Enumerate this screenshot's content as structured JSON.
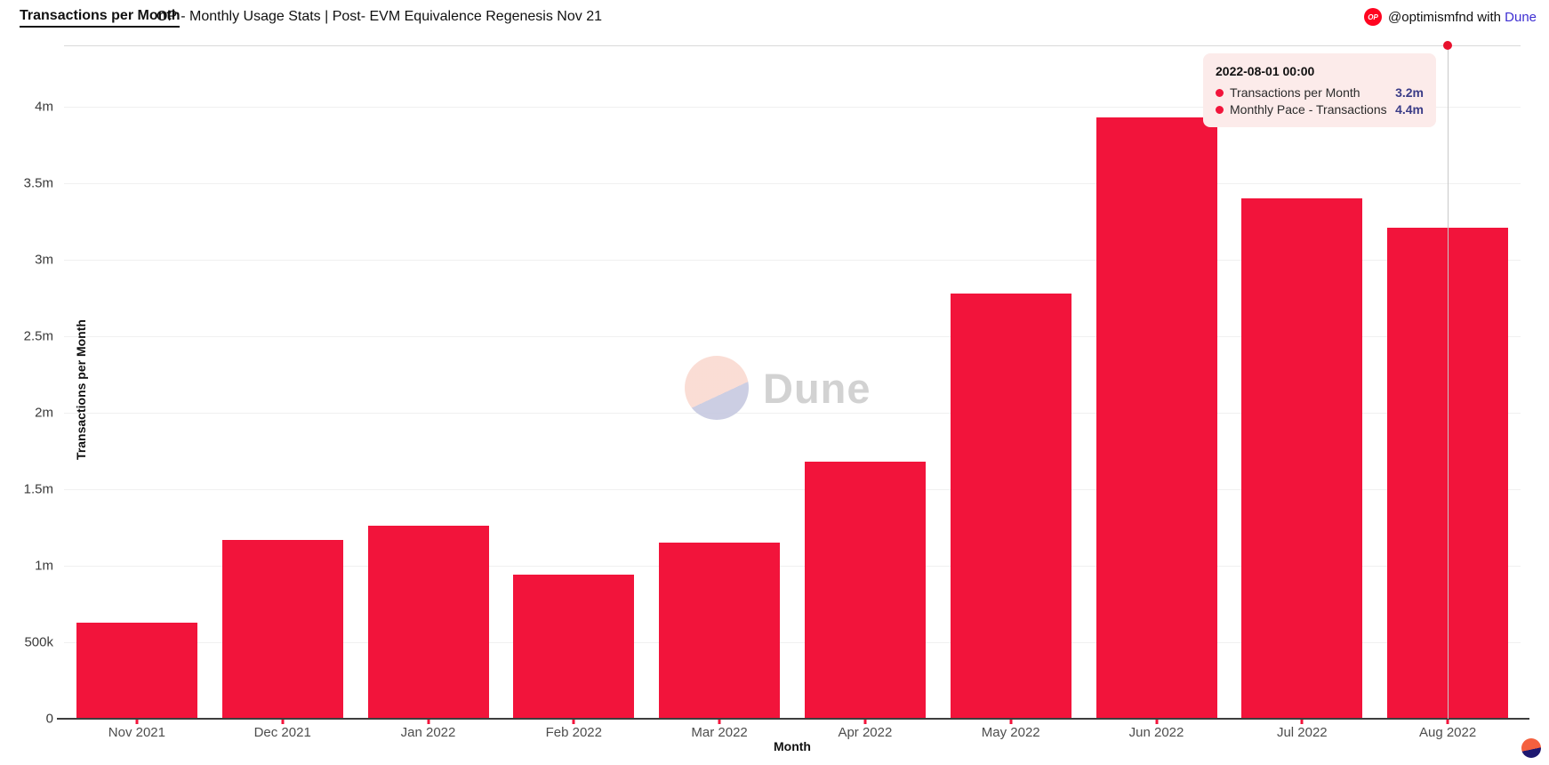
{
  "header": {
    "title": "Transactions per Month",
    "subtitle": "OP - Monthly Usage Stats | Post- EVM Equivalence Regenesis Nov 21",
    "badge_text": "OP",
    "attribution_handle": "@optimismfnd",
    "attribution_connector": "with",
    "attribution_brand": "Dune"
  },
  "chart_data": {
    "type": "bar",
    "title": "OP - Monthly Usage Stats | Post- EVM Equivalence Regenesis Nov 21",
    "xlabel": "Month",
    "ylabel": "Transactions per Month",
    "categories": [
      "Nov 2021",
      "Dec 2021",
      "Jan 2022",
      "Feb 2022",
      "Mar 2022",
      "Apr 2022",
      "May 2022",
      "Jun 2022",
      "Jul 2022",
      "Aug 2022"
    ],
    "series": [
      {
        "name": "Transactions per Month",
        "type": "bar",
        "color": "#f2143b",
        "values": [
          630000,
          1170000,
          1260000,
          940000,
          1150000,
          1680000,
          2780000,
          3930000,
          3400000,
          3210000
        ]
      },
      {
        "name": "Monthly Pace - Transactions",
        "type": "point",
        "color": "#e8112d",
        "values": [
          null,
          null,
          null,
          null,
          null,
          null,
          null,
          null,
          null,
          4400000
        ]
      }
    ],
    "ylim": [
      0,
      4400000
    ],
    "yticks": [
      {
        "value": 0,
        "label": "0"
      },
      {
        "value": 500000,
        "label": "500k"
      },
      {
        "value": 1000000,
        "label": "1m"
      },
      {
        "value": 1500000,
        "label": "1.5m"
      },
      {
        "value": 2000000,
        "label": "2m"
      },
      {
        "value": 2500000,
        "label": "2.5m"
      },
      {
        "value": 3000000,
        "label": "3m"
      },
      {
        "value": 3500000,
        "label": "3.5m"
      },
      {
        "value": 4000000,
        "label": "4m"
      }
    ],
    "grid": "horizontal",
    "legend_position": "none"
  },
  "hover": {
    "category_index": 9,
    "pace_value": 4400000
  },
  "tooltip": {
    "date": "2022-08-01 00:00",
    "rows": [
      {
        "label": "Transactions per Month",
        "value": "3.2m"
      },
      {
        "label": "Monthly Pace - Transactions",
        "value": "4.4m"
      }
    ]
  },
  "watermark": {
    "text": "Dune"
  },
  "colors": {
    "bar": "#f2143b",
    "badge": "#ff0420",
    "brand_link": "#3d2ed2",
    "tooltip_bg": "#fcebea",
    "tooltip_value": "#3b3c87",
    "watermark_pink": "#fad9d0",
    "watermark_lavender": "#c6c9e0",
    "corner_orange": "#f4603e",
    "corner_navy": "#1e1870"
  }
}
